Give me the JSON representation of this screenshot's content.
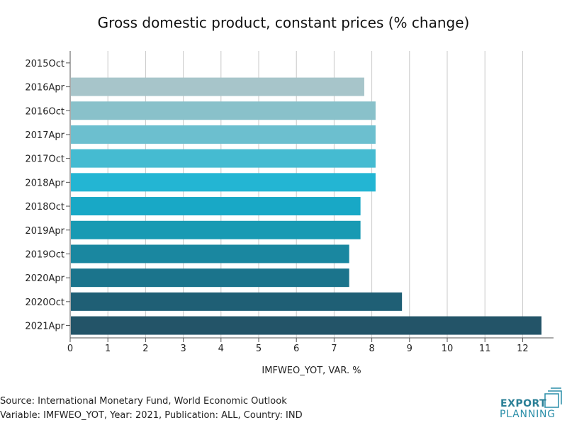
{
  "chart_data": {
    "type": "bar",
    "orientation": "horizontal",
    "title": "Gross domestic product, constant prices (% change)",
    "xlabel": "IMFWEO_YOT, VAR. %",
    "ylabel": "",
    "categories": [
      "2015Oct",
      "2016Apr",
      "2016Oct",
      "2017Apr",
      "2017Oct",
      "2018Apr",
      "2018Oct",
      "2019Apr",
      "2019Oct",
      "2020Apr",
      "2020Oct",
      "2021Apr"
    ],
    "values": [
      null,
      7.8,
      8.1,
      8.1,
      8.1,
      8.1,
      7.7,
      7.7,
      7.4,
      7.4,
      8.8,
      12.5
    ],
    "xlim": [
      0,
      12.5
    ],
    "xticks": [
      "0",
      "1",
      "2",
      "3",
      "4",
      "5",
      "6",
      "7",
      "8",
      "9",
      "10",
      "11",
      "12"
    ],
    "grid": true,
    "colors": [
      "#a7c5ca",
      "#a7c5ca",
      "#89c1ca",
      "#6cbfcf",
      "#45bbd1",
      "#23b5d3",
      "#18a8c6",
      "#189ab3",
      "#1a87a0",
      "#1b748c",
      "#1f5f75",
      "#235468"
    ]
  },
  "footer": {
    "source": "Source: International Monetary Fund, World Economic Outlook",
    "variable": "Variable: IMFWEO_YOT, Year: 2021, Publication: ALL, Country: IND"
  },
  "logo": {
    "line1": "EXPORT",
    "line2": "PLANNING"
  }
}
